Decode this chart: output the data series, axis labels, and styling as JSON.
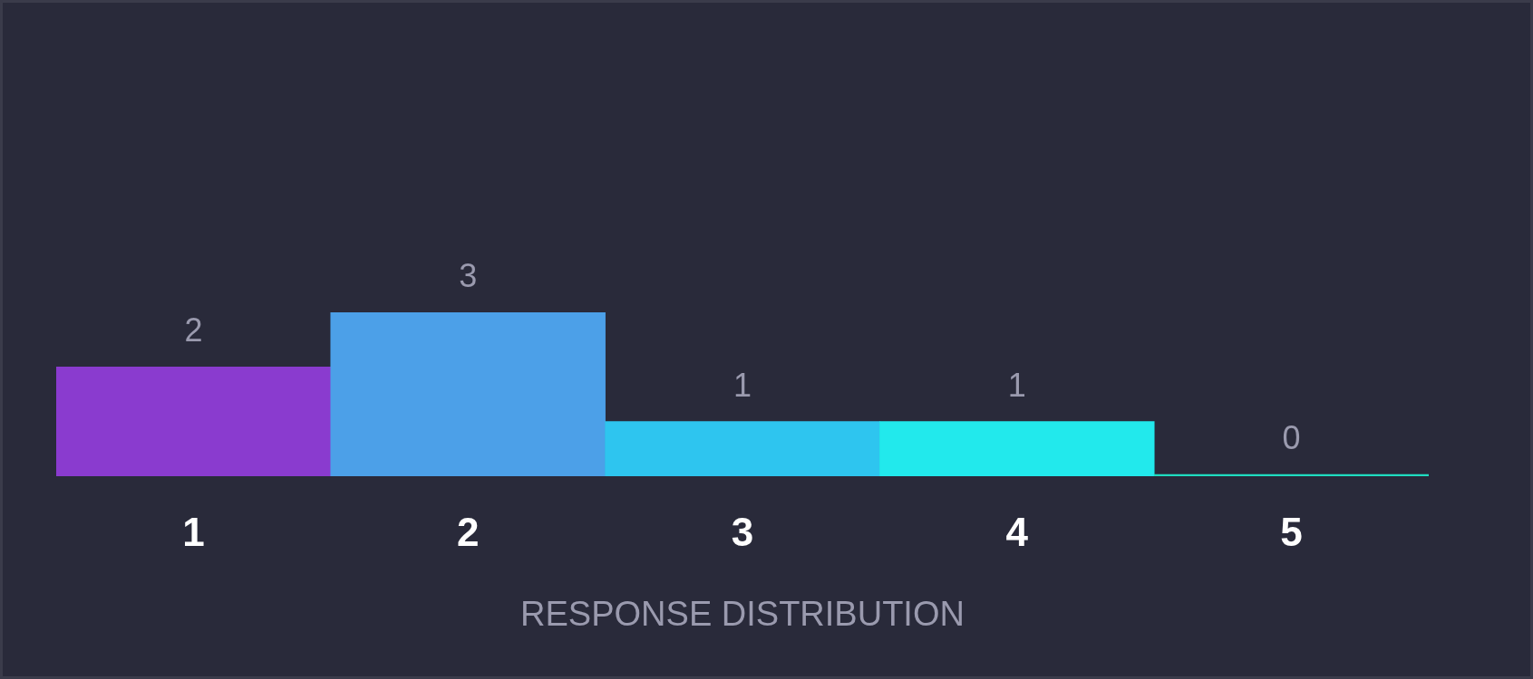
{
  "chart_data": {
    "type": "bar",
    "xlabel": "RESPONSE DISTRIBUTION",
    "categories": [
      "1",
      "2",
      "3",
      "4",
      "5"
    ],
    "values": [
      2,
      3,
      1,
      1,
      0
    ],
    "colors": [
      "#8a3bcf",
      "#4ca0e8",
      "#2ec5ef",
      "#22e9ec",
      "#1fdcc0"
    ],
    "data_labels": true,
    "grid": false,
    "legend": false
  }
}
